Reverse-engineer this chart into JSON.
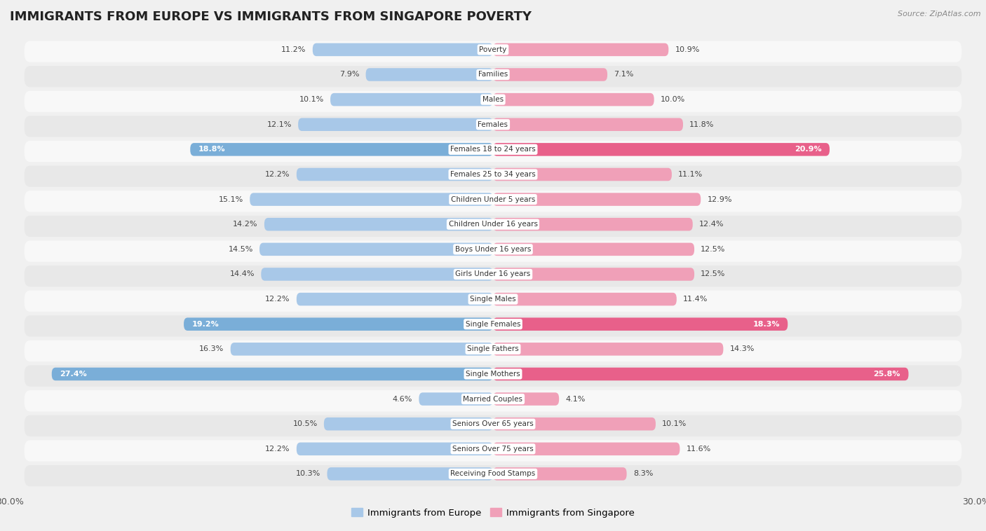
{
  "title": "IMMIGRANTS FROM EUROPE VS IMMIGRANTS FROM SINGAPORE POVERTY",
  "source": "Source: ZipAtlas.com",
  "categories": [
    "Poverty",
    "Families",
    "Males",
    "Females",
    "Females 18 to 24 years",
    "Females 25 to 34 years",
    "Children Under 5 years",
    "Children Under 16 years",
    "Boys Under 16 years",
    "Girls Under 16 years",
    "Single Males",
    "Single Females",
    "Single Fathers",
    "Single Mothers",
    "Married Couples",
    "Seniors Over 65 years",
    "Seniors Over 75 years",
    "Receiving Food Stamps"
  ],
  "europe_values": [
    11.2,
    7.9,
    10.1,
    12.1,
    18.8,
    12.2,
    15.1,
    14.2,
    14.5,
    14.4,
    12.2,
    19.2,
    16.3,
    27.4,
    4.6,
    10.5,
    12.2,
    10.3
  ],
  "singapore_values": [
    10.9,
    7.1,
    10.0,
    11.8,
    20.9,
    11.1,
    12.9,
    12.4,
    12.5,
    12.5,
    11.4,
    18.3,
    14.3,
    25.8,
    4.1,
    10.1,
    11.6,
    8.3
  ],
  "europe_color": "#a8c8e8",
  "singapore_color": "#f0a0b8",
  "highlight_europe_color": "#7aaed8",
  "highlight_singapore_color": "#e8608a",
  "highlight_rows": [
    4,
    11,
    13
  ],
  "x_max": 30.0,
  "background_color": "#f0f0f0",
  "row_bg_light": "#f8f8f8",
  "row_bg_dark": "#e8e8e8",
  "legend_europe": "Immigrants from Europe",
  "legend_singapore": "Immigrants from Singapore"
}
